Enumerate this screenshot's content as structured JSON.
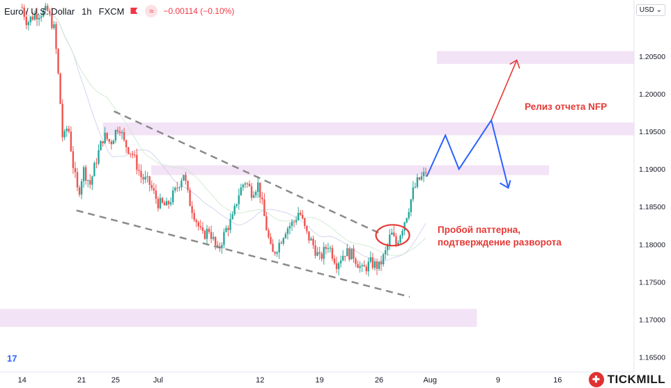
{
  "header": {
    "symbol": "Euro / U.S. Dollar",
    "timeframe": "1h",
    "source": "FXCM",
    "change": "−0.00114 (−0.10%)",
    "currency_button": "USD"
  },
  "watermark": {
    "tv_logo": "17",
    "brand": "TICKMILL"
  },
  "annotations": {
    "nfp": "Релиз отчета NFP",
    "breakout_line1": "Пробой паттерна,",
    "breakout_line2": "подтверждение разворота"
  },
  "colors": {
    "up": "#26a69a",
    "down": "#ef5350",
    "zone": "#f3e3f6",
    "projection": "#2962ff",
    "arrow_red": "#e53935",
    "trend": "#8a8a8a"
  },
  "chart_data": {
    "type": "candlestick",
    "ylim": [
      1.163,
      1.2125
    ],
    "y_ticks": [
      "1.16500",
      "1.17000",
      "1.17500",
      "1.18000",
      "1.18500",
      "1.19000",
      "1.19500",
      "1.20000",
      "1.20500"
    ],
    "y_tick_values": [
      1.165,
      1.17,
      1.175,
      1.18,
      1.185,
      1.19,
      1.195,
      1.2,
      1.205
    ],
    "x_ticks": [
      {
        "label": "14",
        "day": 14
      },
      {
        "label": "21",
        "day": 21
      },
      {
        "label": "25",
        "day": 25
      },
      {
        "label": "Jul",
        "day": 30
      },
      {
        "label": "12",
        "day": 42
      },
      {
        "label": "19",
        "day": 49
      },
      {
        "label": "26",
        "day": 56
      },
      {
        "label": "Aug",
        "day": 62
      },
      {
        "label": "9",
        "day": 70
      },
      {
        "label": "16",
        "day": 77
      }
    ],
    "xlim_day": [
      11.4,
      86.0
    ],
    "price_path": [
      [
        14.0,
        1.2115
      ],
      [
        14.6,
        1.2095
      ],
      [
        15.4,
        1.2105
      ],
      [
        16.2,
        1.2108
      ],
      [
        17.0,
        1.211
      ],
      [
        17.8,
        1.2085
      ],
      [
        18.4,
        1.2005
      ],
      [
        18.8,
        1.1935
      ],
      [
        19.4,
        1.196
      ],
      [
        20.0,
        1.1905
      ],
      [
        20.6,
        1.1865
      ],
      [
        21.2,
        1.19
      ],
      [
        22.0,
        1.188
      ],
      [
        22.8,
        1.1915
      ],
      [
        23.6,
        1.1945
      ],
      [
        24.4,
        1.1935
      ],
      [
        25.4,
        1.196
      ],
      [
        26.0,
        1.1935
      ],
      [
        27.0,
        1.192
      ],
      [
        28.0,
        1.189
      ],
      [
        29.0,
        1.188
      ],
      [
        30.0,
        1.1855
      ],
      [
        31.0,
        1.185
      ],
      [
        32.0,
        1.187
      ],
      [
        33.0,
        1.1895
      ],
      [
        33.6,
        1.186
      ],
      [
        34.4,
        1.1835
      ],
      [
        35.2,
        1.181
      ],
      [
        36.0,
        1.182
      ],
      [
        37.0,
        1.179
      ],
      [
        38.0,
        1.182
      ],
      [
        38.8,
        1.1835
      ],
      [
        39.4,
        1.1865
      ],
      [
        40.2,
        1.1885
      ],
      [
        41.0,
        1.187
      ],
      [
        41.8,
        1.188
      ],
      [
        42.6,
        1.183
      ],
      [
        43.4,
        1.1785
      ],
      [
        44.2,
        1.18
      ],
      [
        45.0,
        1.182
      ],
      [
        46.0,
        1.183
      ],
      [
        46.6,
        1.1845
      ],
      [
        47.4,
        1.1815
      ],
      [
        48.2,
        1.18
      ],
      [
        49.0,
        1.178
      ],
      [
        50.0,
        1.18
      ],
      [
        51.0,
        1.1775
      ],
      [
        52.0,
        1.179
      ],
      [
        53.0,
        1.1785
      ],
      [
        54.0,
        1.1765
      ],
      [
        55.0,
        1.1775
      ],
      [
        56.0,
        1.177
      ],
      [
        56.8,
        1.179
      ],
      [
        57.4,
        1.1815
      ],
      [
        58.0,
        1.18
      ],
      [
        58.8,
        1.1825
      ],
      [
        59.4,
        1.1845
      ],
      [
        60.0,
        1.187
      ],
      [
        60.6,
        1.1885
      ],
      [
        61.2,
        1.189
      ],
      [
        61.6,
        1.19
      ]
    ],
    "resistance_trendline": [
      [
        24.8,
        1.1977
      ],
      [
        56.0,
        1.1815
      ]
    ],
    "support_trendline": [
      [
        20.4,
        1.1845
      ],
      [
        59.6,
        1.173
      ]
    ],
    "zones": [
      {
        "y0": 1.204,
        "y1": 1.2057,
        "x0": 62.8,
        "x1": 86.0
      },
      {
        "y0": 1.1945,
        "y1": 1.1962,
        "x0": 23.5,
        "x1": 86.0
      },
      {
        "y0": 1.1892,
        "y1": 1.1905,
        "x0": 29.2,
        "x1": 76.0
      },
      {
        "y0": 1.169,
        "y1": 1.1714,
        "x0": 11.4,
        "x1": 67.5
      }
    ],
    "projection": [
      [
        61.6,
        1.189
      ],
      [
        63.8,
        1.1945
      ],
      [
        65.4,
        1.19
      ],
      [
        69.2,
        1.1965
      ],
      [
        71.2,
        1.1875
      ]
    ],
    "red_arrow": [
      [
        69.2,
        1.1965
      ],
      [
        72.2,
        1.2045
      ]
    ],
    "breakout_circle": {
      "day": 57.6,
      "price": 1.1812
    }
  }
}
